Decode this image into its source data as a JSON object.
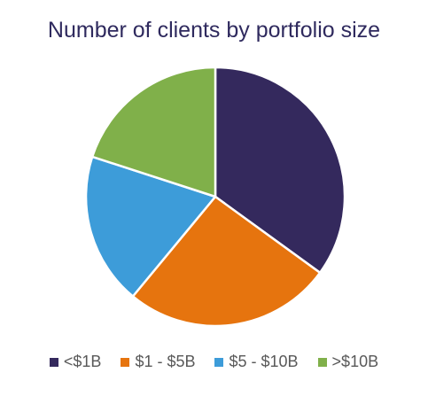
{
  "chart_data": {
    "type": "pie",
    "title": "Number of clients by portfolio size",
    "categories": [
      "<$1B",
      "$1 - $5B",
      "$5 - $10B",
      ">$10B"
    ],
    "values": [
      35,
      26,
      19,
      20
    ],
    "colors": [
      "#34295d",
      "#e6740e",
      "#3d9cd9",
      "#80b04a"
    ],
    "legend_position": "bottom"
  }
}
